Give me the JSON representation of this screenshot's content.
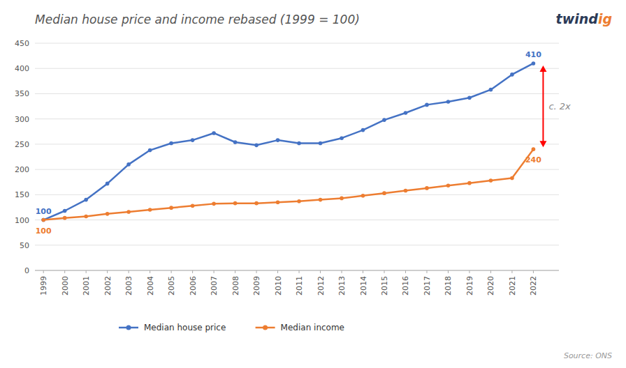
{
  "chart_data": {
    "type": "line",
    "title": "Median house price and income rebased (1999 = 100)",
    "x": [
      1999,
      2000,
      2001,
      2002,
      2003,
      2004,
      2005,
      2006,
      2007,
      2008,
      2009,
      2010,
      2011,
      2012,
      2013,
      2014,
      2015,
      2016,
      2017,
      2018,
      2019,
      2020,
      2021,
      2022
    ],
    "xlim": [
      1998.6,
      2023.2
    ],
    "xticks": [
      1999,
      2000,
      2001,
      2002,
      2003,
      2004,
      2005,
      2006,
      2007,
      2008,
      2009,
      2010,
      2011,
      2012,
      2013,
      2014,
      2015,
      2016,
      2017,
      2018,
      2019,
      2020,
      2021,
      2022
    ],
    "ylim": [
      0,
      450
    ],
    "yticks": [
      0,
      50,
      100,
      150,
      200,
      250,
      300,
      350,
      400,
      450
    ],
    "grid": true,
    "legend": "bottom",
    "series": [
      {
        "name": "Median house price",
        "color": "#4472C4",
        "marker": "circle",
        "values": [
          100,
          118,
          140,
          172,
          210,
          238,
          252,
          258,
          272,
          254,
          248,
          258,
          252,
          252,
          262,
          278,
          298,
          312,
          328,
          334,
          342,
          358,
          388,
          410
        ]
      },
      {
        "name": "Median income",
        "color": "#ED7D31",
        "marker": "circle",
        "values": [
          100,
          104,
          107,
          112,
          116,
          120,
          124,
          128,
          132,
          133,
          133,
          135,
          137,
          140,
          143,
          148,
          153,
          158,
          163,
          168,
          173,
          178,
          183,
          240
        ]
      }
    ],
    "annotations": [
      {
        "text": "100",
        "series": 0,
        "index": 0
      },
      {
        "text": "100",
        "series": 1,
        "index": 0
      },
      {
        "text": "410",
        "series": 0,
        "index": 23
      },
      {
        "text": "240",
        "series": 1,
        "index": 23
      },
      {
        "text": "c. 2x",
        "from_series": 0,
        "to_series": 1,
        "index": 23,
        "color": "#FF0000"
      }
    ],
    "source": "Source: ONS",
    "logo": [
      {
        "text": "twind",
        "color": "#2B3A57"
      },
      {
        "text": "ig",
        "color": "#ED7D31"
      }
    ]
  }
}
